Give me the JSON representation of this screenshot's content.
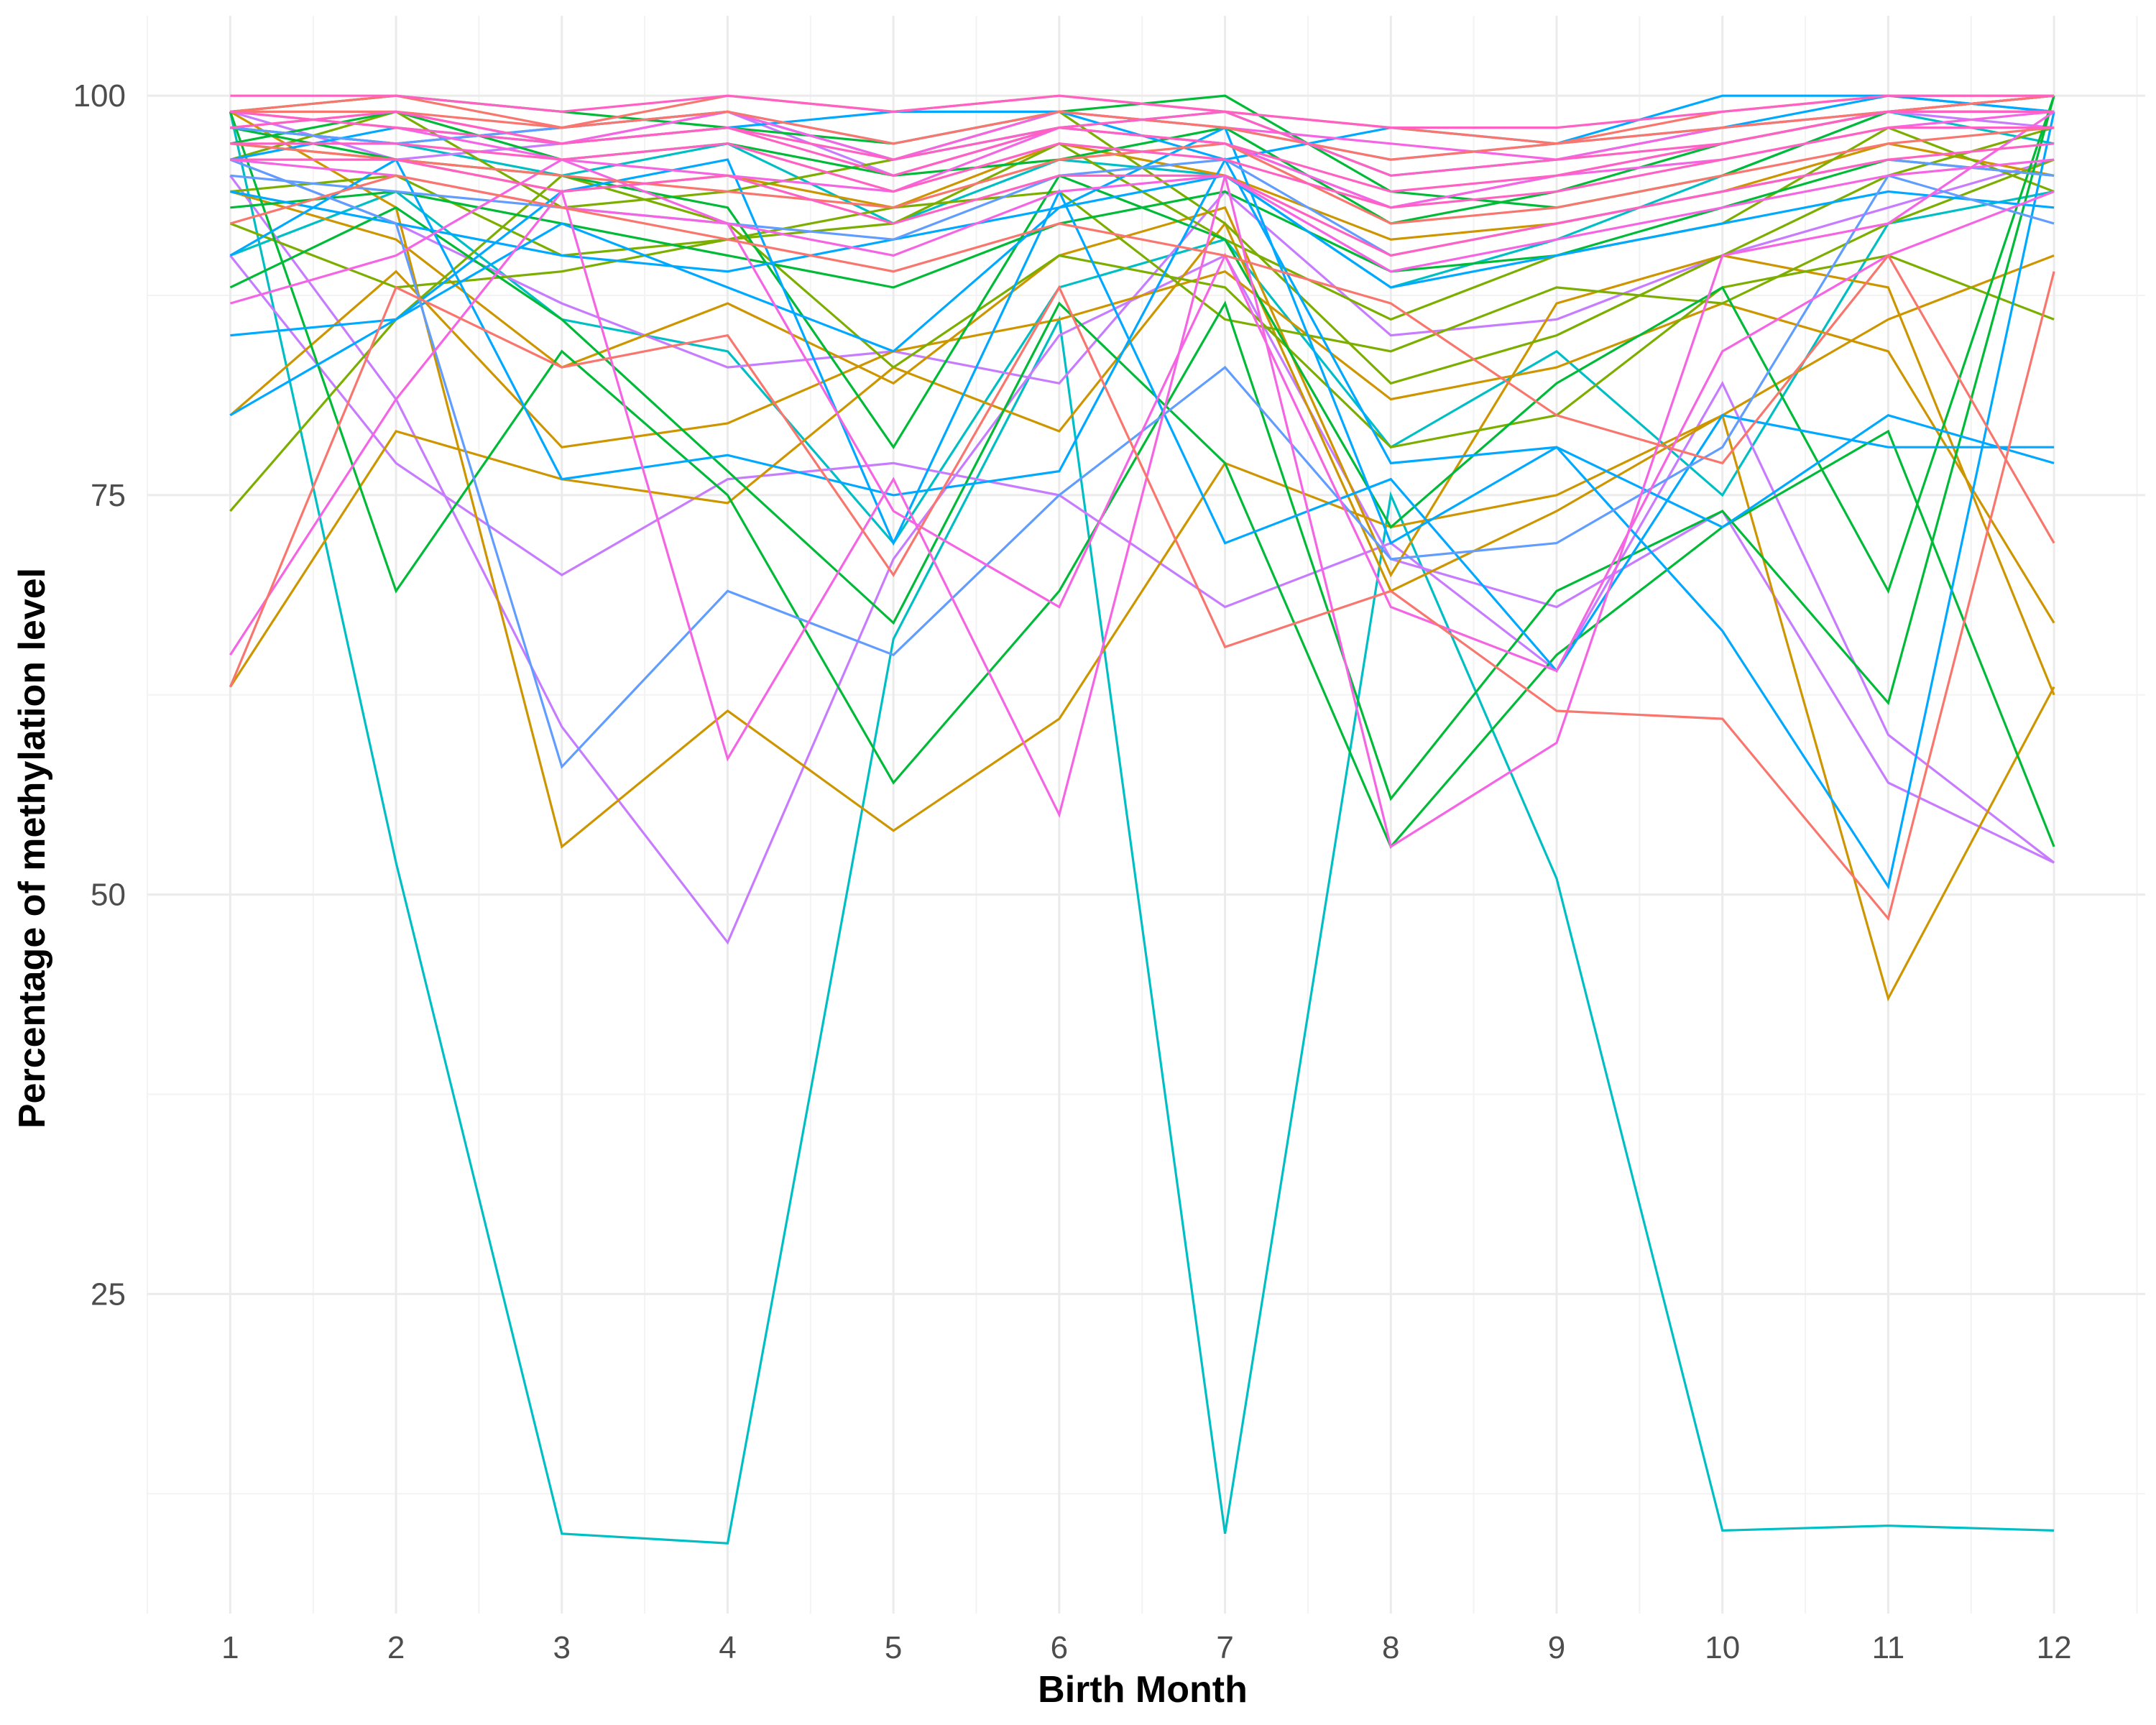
{
  "chart_data": {
    "type": "line",
    "title": "",
    "xlabel": "Birth Month",
    "ylabel": "Percentage of methylation level",
    "x": [
      1,
      2,
      3,
      4,
      5,
      6,
      7,
      8,
      9,
      10,
      11,
      12
    ],
    "x_ticks": [
      "1",
      "2",
      "3",
      "4",
      "5",
      "6",
      "7",
      "8",
      "9",
      "10",
      "11",
      "12"
    ],
    "y_ticks": [
      "25",
      "50",
      "75",
      "100"
    ],
    "xlim": [
      0.5,
      12.55
    ],
    "ylim": [
      5,
      105
    ],
    "grid": true,
    "legend": "none",
    "series": [
      {
        "color": "#00BFC4",
        "values": [
          99,
          52,
          10,
          9.4,
          66,
          86,
          10,
          75,
          51,
          10.2,
          10.5,
          10.2
        ]
      },
      {
        "color": "#00BFC4",
        "values": [
          98,
          97,
          95,
          97,
          92,
          96,
          95,
          88,
          91,
          95,
          99,
          97
        ]
      },
      {
        "color": "#00BFC4",
        "values": [
          90,
          94,
          86,
          84,
          72,
          88,
          91,
          78,
          84,
          75,
          92,
          94
        ]
      },
      {
        "color": "#C77CFF",
        "values": [
          95,
          81,
          60.5,
          47,
          71,
          85,
          90,
          71,
          68,
          74,
          57,
          52
        ]
      },
      {
        "color": "#C77CFF",
        "values": [
          90,
          77,
          70,
          76,
          77,
          75,
          68,
          72,
          64,
          82,
          60,
          52
        ]
      },
      {
        "color": "#C77CFF",
        "values": [
          96,
          92,
          87,
          83,
          84,
          82,
          94,
          85,
          86,
          90,
          93,
          96
        ]
      },
      {
        "color": "#C77CFF",
        "values": [
          99,
          96,
          97,
          99,
          95,
          98,
          97,
          93,
          95,
          97,
          99,
          98
        ]
      },
      {
        "color": "#CD9600",
        "values": [
          99,
          93,
          53,
          61.5,
          54,
          61,
          77,
          73,
          75,
          80,
          86,
          90
        ]
      },
      {
        "color": "#CD9600",
        "values": [
          63,
          79,
          76,
          74.5,
          83,
          79,
          92,
          69,
          74,
          80,
          43.5,
          63
        ]
      },
      {
        "color": "#CD9600",
        "values": [
          80,
          89,
          78,
          79.5,
          84,
          86,
          89,
          81,
          83,
          87,
          84,
          67
        ]
      },
      {
        "color": "#CD9600",
        "values": [
          97,
          96,
          94,
          95,
          93,
          97,
          95,
          91,
          92,
          94,
          97,
          95
        ]
      },
      {
        "color": "#CD9600",
        "values": [
          94,
          91,
          83,
          87,
          82,
          90,
          93,
          70,
          87,
          90,
          88,
          62.5
        ]
      },
      {
        "color": "#7CAE00",
        "values": [
          74,
          86,
          95,
          92,
          83,
          90,
          88,
          78,
          80,
          88,
          90,
          86
        ]
      },
      {
        "color": "#7CAE00",
        "values": [
          96,
          99,
          93,
          94,
          96,
          99,
          92,
          82,
          85,
          90,
          95,
          98
        ]
      },
      {
        "color": "#7CAE00",
        "values": [
          92,
          88,
          89,
          91,
          93,
          94,
          86,
          84,
          88,
          87,
          92,
          96
        ]
      },
      {
        "color": "#7CAE00",
        "values": [
          94,
          95,
          90,
          91,
          92,
          97,
          91,
          86,
          90,
          92,
          98,
          94
        ]
      },
      {
        "color": "#00BA38",
        "values": [
          99,
          69,
          84,
          75,
          57,
          69,
          87,
          56,
          69,
          74,
          62,
          100
        ]
      },
      {
        "color": "#00BA38",
        "values": [
          98,
          96,
          95,
          93,
          78,
          95,
          91,
          73,
          82,
          88,
          69,
          100
        ]
      },
      {
        "color": "#00BA38",
        "values": [
          88,
          93,
          86,
          76.5,
          67,
          87,
          77,
          53,
          65,
          73,
          79,
          53
        ]
      },
      {
        "color": "#00BA38",
        "values": [
          99,
          100,
          99,
          98,
          97,
          99,
          100,
          94,
          93,
          95,
          99,
          99
        ]
      },
      {
        "color": "#00BA38",
        "values": [
          97,
          99,
          96,
          97,
          95,
          96,
          98,
          92,
          94,
          97,
          99,
          100
        ]
      },
      {
        "color": "#00BA38",
        "values": [
          93,
          94,
          92,
          90,
          88,
          92,
          94,
          89,
          90,
          93,
          96,
          95
        ]
      },
      {
        "color": "#00A9FF",
        "values": [
          90,
          96,
          76,
          77.5,
          75,
          76.5,
          96,
          77,
          78,
          66.5,
          50.5,
          99
        ]
      },
      {
        "color": "#00A9FF",
        "values": [
          85,
          86,
          94,
          96,
          72,
          94,
          72,
          76,
          64,
          80,
          78,
          78
        ]
      },
      {
        "color": "#00A9FF",
        "values": [
          80,
          86,
          92,
          88,
          84,
          93,
          98,
          72,
          78,
          73,
          80,
          77
        ]
      },
      {
        "color": "#00A9FF",
        "values": [
          96,
          98,
          97,
          98,
          99,
          99,
          96,
          98,
          97,
          100,
          100,
          99
        ]
      },
      {
        "color": "#00A9FF",
        "values": [
          98,
          97,
          98,
          99,
          96,
          98,
          99,
          95,
          96,
          98,
          100,
          99
        ]
      },
      {
        "color": "#00A9FF",
        "values": [
          94,
          92,
          90,
          89,
          91,
          93,
          95,
          88,
          90,
          92,
          94,
          93
        ]
      },
      {
        "color": "#619CFF",
        "values": [
          96,
          92,
          58,
          69,
          65,
          75,
          83,
          71,
          72,
          78,
          95,
          92
        ]
      },
      {
        "color": "#619CFF",
        "values": [
          98,
          97,
          98,
          99,
          97,
          99,
          98,
          96,
          97,
          98,
          99,
          100
        ]
      },
      {
        "color": "#619CFF",
        "values": [
          95,
          94,
          93,
          92,
          91,
          95,
          96,
          90,
          92,
          94,
          96,
          95
        ]
      },
      {
        "color": "#F564E3",
        "values": [
          65,
          81,
          94,
          58.5,
          76,
          55,
          95,
          53,
          59.5,
          90,
          92,
          99
        ]
      },
      {
        "color": "#F564E3",
        "values": [
          87,
          90,
          96,
          92,
          74,
          68,
          90,
          68,
          64,
          84,
          90,
          94
        ]
      },
      {
        "color": "#F564E3",
        "values": [
          98,
          99,
          97,
          99,
          96,
          99,
          98,
          97,
          96,
          98,
          99,
          100
        ]
      },
      {
        "color": "#F564E3",
        "values": [
          99,
          98,
          96,
          95,
          94,
          98,
          97,
          93,
          95,
          96,
          98,
          99
        ]
      },
      {
        "color": "#F564E3",
        "values": [
          96,
          95,
          93,
          92,
          90,
          94,
          95,
          89,
          91,
          93,
          95,
          96
        ]
      },
      {
        "color": "#F8766D",
        "values": [
          63,
          88,
          83,
          85,
          70,
          88,
          65.5,
          69,
          61.5,
          61,
          48.5,
          89
        ]
      },
      {
        "color": "#F8766D",
        "values": [
          92,
          95,
          93,
          91,
          89,
          92,
          90,
          87,
          80,
          77,
          90,
          72
        ]
      },
      {
        "color": "#F8766D",
        "values": [
          99,
          100,
          98,
          100,
          99,
          100,
          99,
          98,
          97,
          99,
          100,
          100
        ]
      },
      {
        "color": "#F8766D",
        "values": [
          97,
          96,
          95,
          94,
          93,
          96,
          97,
          92,
          93,
          95,
          97,
          98
        ]
      },
      {
        "color": "#F8766D",
        "values": [
          99,
          99,
          98,
          99,
          97,
          99,
          98,
          96,
          97,
          98,
          99,
          100
        ]
      },
      {
        "color": "#FF61C3",
        "values": [
          100,
          100,
          99,
          100,
          99,
          100,
          99,
          98,
          98,
          99,
          100,
          100
        ]
      },
      {
        "color": "#FF61C3",
        "values": [
          98,
          99,
          97,
          98,
          96,
          98,
          99,
          95,
          96,
          97,
          99,
          99
        ]
      },
      {
        "color": "#FF61C3",
        "values": [
          97,
          97,
          96,
          97,
          94,
          97,
          96,
          93,
          94,
          96,
          98,
          98
        ]
      },
      {
        "color": "#FF61C3",
        "values": [
          99,
          98,
          97,
          98,
          95,
          98,
          97,
          94,
          95,
          97,
          99,
          99
        ]
      },
      {
        "color": "#FF61C3",
        "values": [
          96,
          96,
          94,
          95,
          92,
          95,
          95,
          90,
          92,
          94,
          96,
          97
        ]
      }
    ]
  }
}
